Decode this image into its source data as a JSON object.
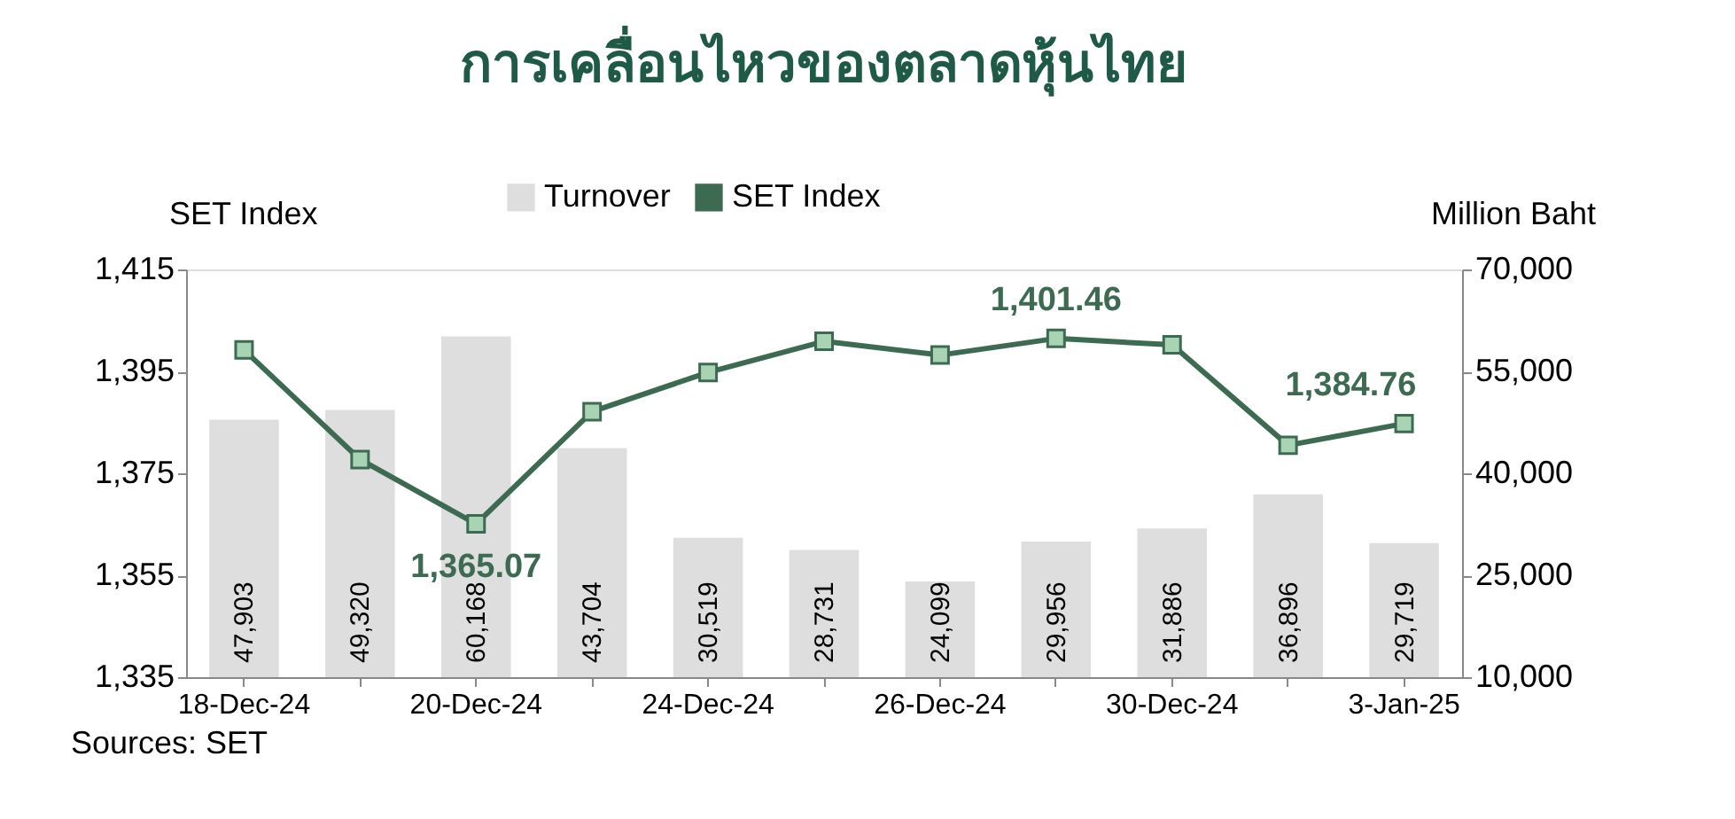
{
  "chart_data": {
    "type": "bar",
    "title": "การเคลื่อนไหวของตลาดหุ้นไทย",
    "ylabel": "SET Index",
    "y2label": "Million Baht",
    "categories": [
      "18-Dec-24",
      null,
      "20-Dec-24",
      null,
      "24-Dec-24",
      null,
      "26-Dec-24",
      null,
      "30-Dec-24",
      null,
      "3-Jan-25"
    ],
    "series": [
      {
        "name": "Turnover",
        "axis": "y2",
        "color": "#dedede",
        "values": [
          47903,
          49320,
          60168,
          43704,
          30519,
          28731,
          24099,
          29956,
          31886,
          36896,
          29719
        ],
        "value_labels": [
          "47,903",
          "49,320",
          "60,168",
          "43,704",
          "30,519",
          "28,731",
          "24,099",
          "29,956",
          "31,886",
          "36,896",
          "29,719"
        ]
      },
      {
        "name": "SET Index",
        "type": "line",
        "color": "#3d6b52",
        "marker": "square",
        "values": [
          1399.2,
          1377.7,
          1365.07,
          1387.1,
          1394.8,
          1400.9,
          1398.2,
          1401.46,
          1400.2,
          1380.5,
          1384.76
        ],
        "value_labels": [
          null,
          null,
          "1,365.07",
          null,
          null,
          null,
          null,
          "1,401.46",
          null,
          null,
          "1,384.76"
        ]
      }
    ],
    "ylim": [
      1335,
      1415
    ],
    "yticks": [
      {
        "value": 1335,
        "label": "1,335"
      },
      {
        "value": 1355,
        "label": "1,355"
      },
      {
        "value": 1375,
        "label": "1,375"
      },
      {
        "value": 1395,
        "label": "1,395"
      },
      {
        "value": 1415,
        "label": "1,415"
      }
    ],
    "y2lim": [
      10000,
      70000
    ],
    "y2ticks": [
      {
        "value": 10000,
        "label": "10,000"
      },
      {
        "value": 25000,
        "label": "25,000"
      },
      {
        "value": 40000,
        "label": "40,000"
      },
      {
        "value": 55000,
        "label": "55,000"
      },
      {
        "value": 70000,
        "label": "70,000"
      }
    ],
    "legend": "top",
    "grid": false,
    "annotations": [
      "Sources: SET"
    ]
  }
}
